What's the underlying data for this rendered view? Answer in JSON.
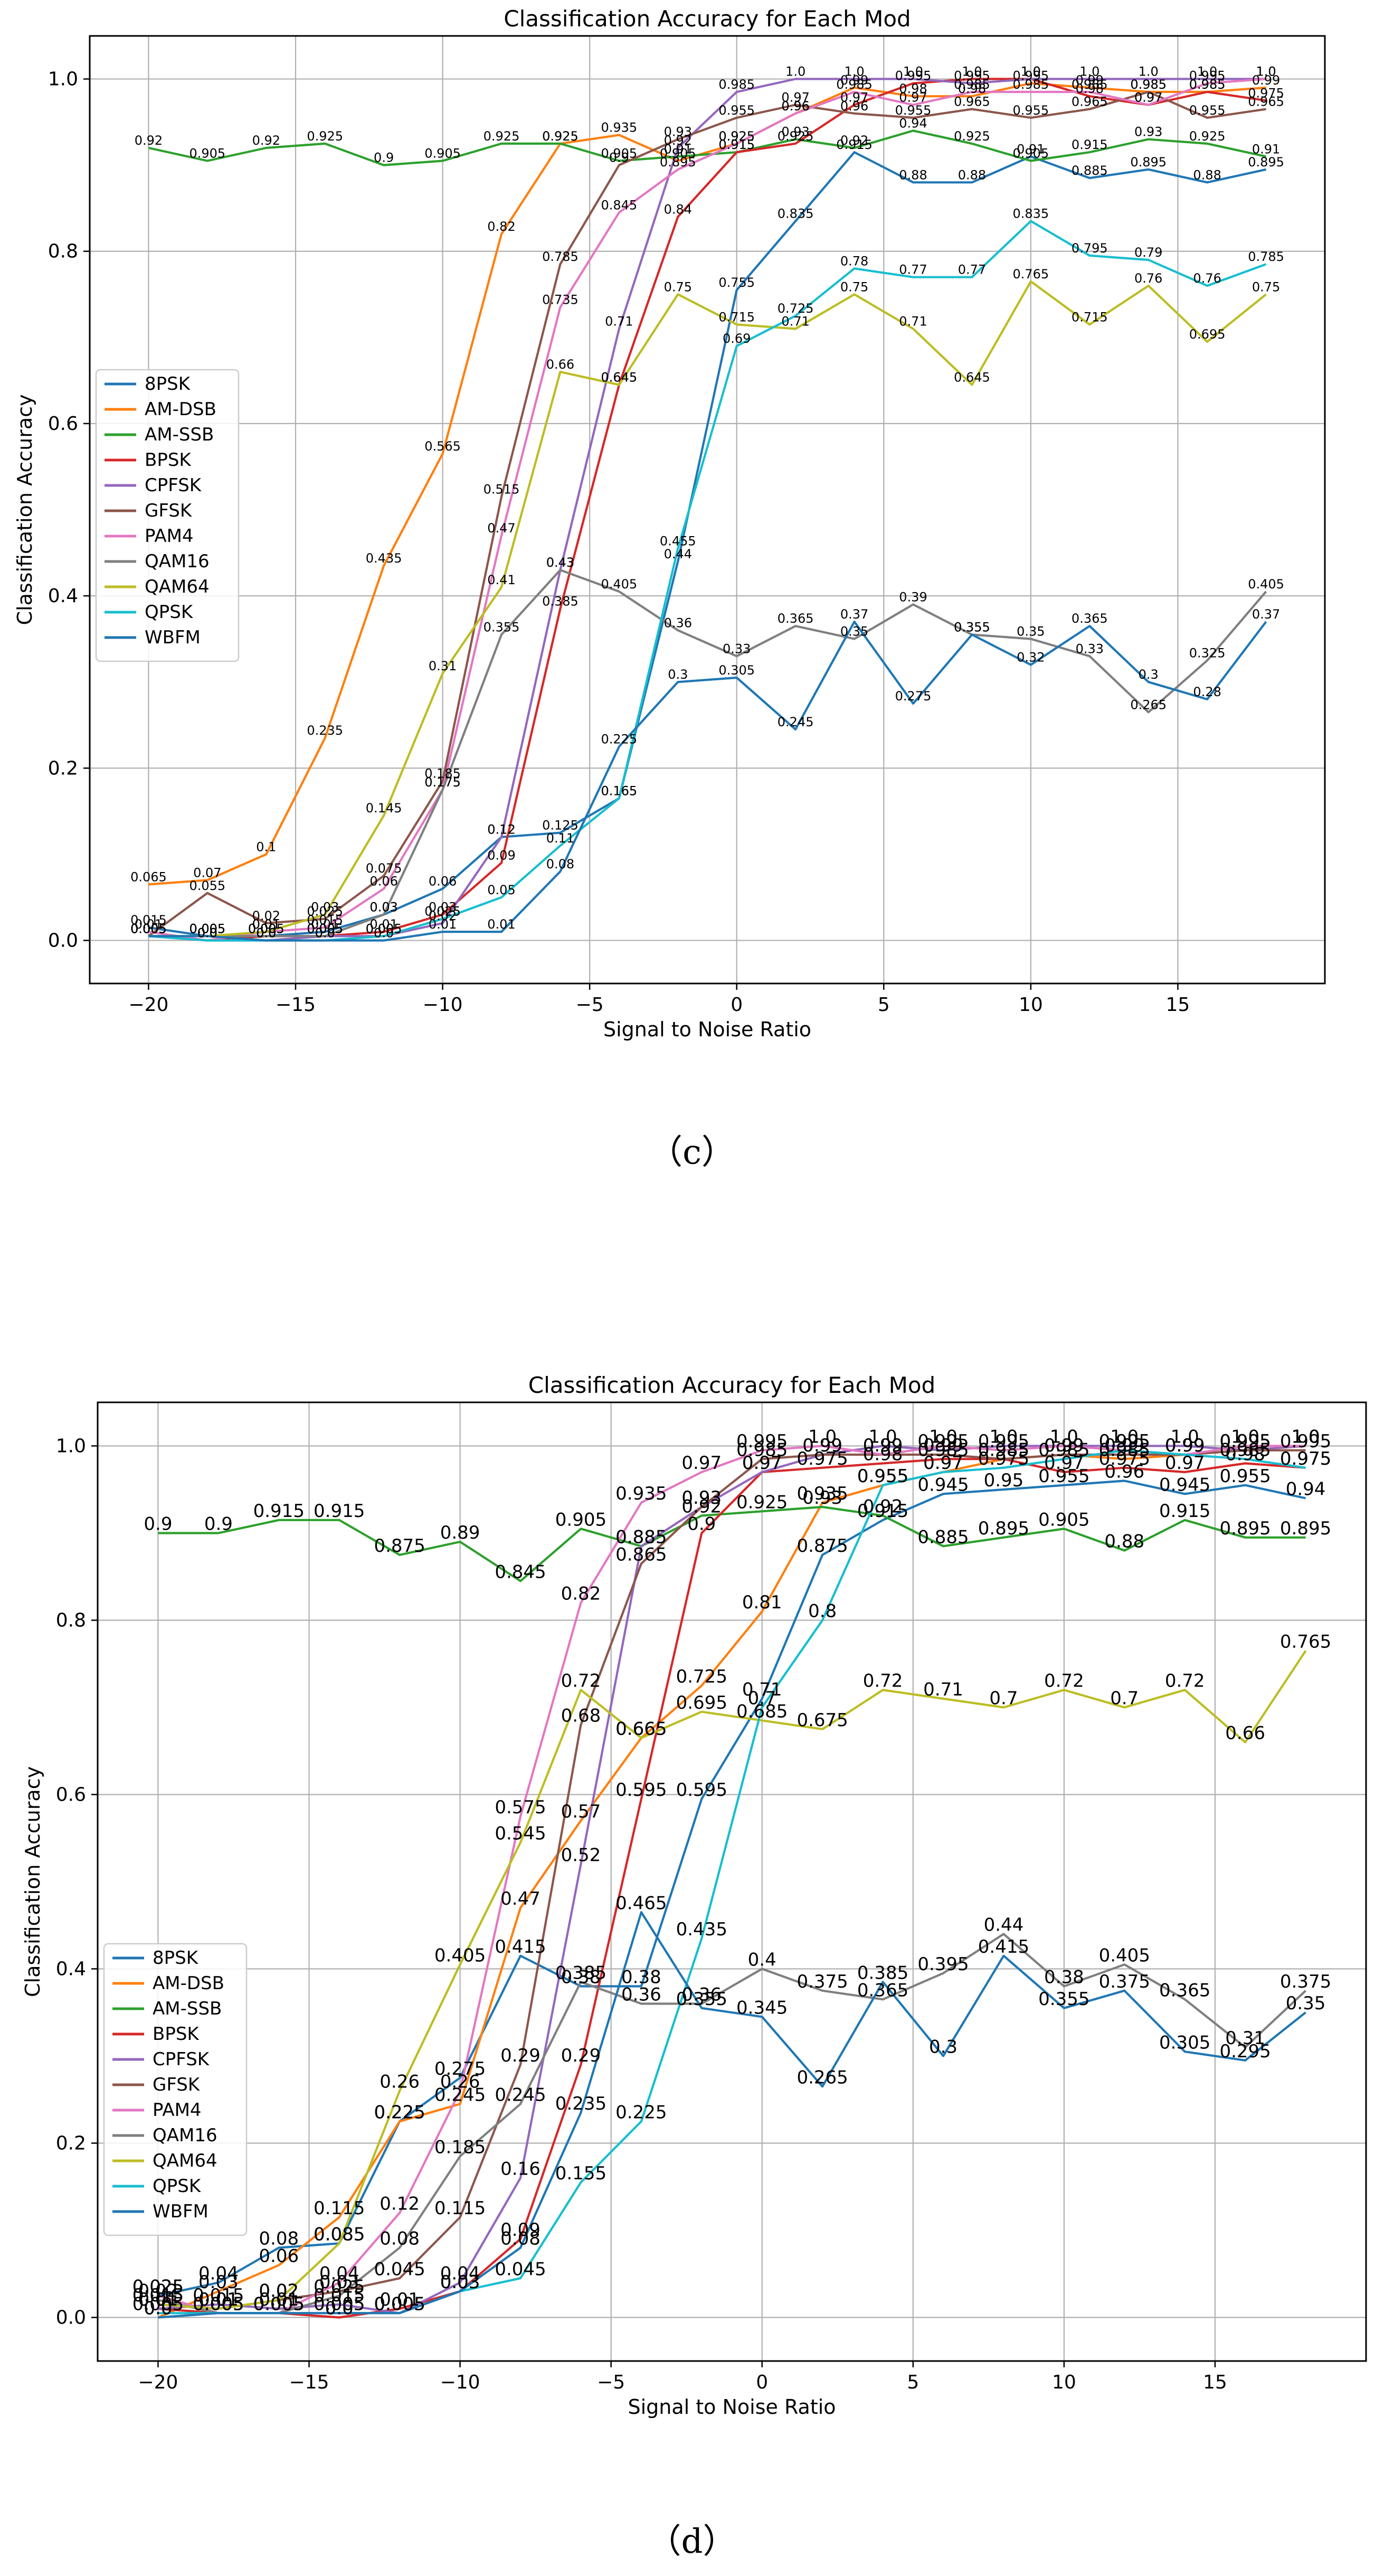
{
  "colors": {
    "8PSK": "#1f77b4",
    "AM-DSB": "#ff7f0e",
    "AM-SSB": "#2ca02c",
    "BPSK": "#d62728",
    "CPFSK": "#9467bd",
    "GFSK": "#8c564b",
    "PAM4": "#e377c2",
    "QAM16": "#7f7f7f",
    "QAM64": "#bcbd22",
    "QPSK": "#17becf",
    "WBFM": "#1f77b4"
  },
  "chart_data": [
    {
      "type": "line",
      "title": "Classification Accuracy for Each Mod",
      "xlabel": "Signal to Noise Ratio",
      "ylabel": "Classification Accuracy",
      "caption": "（c）",
      "x": [
        -20,
        -18,
        -16,
        -14,
        -12,
        -10,
        -8,
        -6,
        -4,
        -2,
        0,
        2,
        4,
        6,
        8,
        10,
        12,
        14,
        16,
        18
      ],
      "xlim": [
        -22,
        20
      ],
      "ylim": [
        -0.05,
        1.05
      ],
      "xticks": [
        -20,
        -15,
        -10,
        -5,
        0,
        5,
        10,
        15
      ],
      "yticks": [
        0.0,
        0.2,
        0.4,
        0.6,
        0.8,
        1.0
      ],
      "xtick_labels": [
        "−20",
        "−15",
        "−10",
        "−5",
        "0",
        "5",
        "10",
        "15"
      ],
      "ytick_labels": [
        "0.0",
        "0.2",
        "0.4",
        "0.6",
        "0.8",
        "1.0"
      ],
      "grid": true,
      "legend": "center-left",
      "series": [
        {
          "name": "8PSK",
          "values": [
            0.015,
            0.005,
            0.005,
            0.01,
            0.03,
            0.06,
            0.12,
            0.125,
            0.165,
            0.44,
            0.755,
            0.835,
            0.915,
            0.88,
            0.88,
            0.91,
            0.885,
            0.895,
            0.88,
            0.895
          ]
        },
        {
          "name": "AM-DSB",
          "values": [
            0.065,
            0.07,
            0.1,
            0.235,
            0.435,
            0.565,
            0.82,
            0.925,
            0.935,
            0.905,
            0.925,
            0.96,
            0.99,
            0.98,
            0.98,
            0.995,
            0.99,
            0.985,
            0.985,
            0.99
          ]
        },
        {
          "name": "AM-SSB",
          "values": [
            0.92,
            0.905,
            0.92,
            0.925,
            0.9,
            0.905,
            0.925,
            0.925,
            0.905,
            0.91,
            0.915,
            0.93,
            0.92,
            0.94,
            0.925,
            0.905,
            0.915,
            0.93,
            0.925,
            0.91
          ]
        },
        {
          "name": "BPSK",
          "values": [
            0.005,
            0.0,
            0.005,
            0.005,
            0.01,
            0.03,
            0.09,
            0.385,
            0.645,
            0.84,
            0.915,
            0.925,
            0.97,
            0.995,
            1.0,
            1.0,
            0.98,
            0.97,
            0.985,
            0.975
          ]
        },
        {
          "name": "CPFSK",
          "values": [
            0.005,
            0.0,
            0.0,
            0.005,
            0.005,
            0.02,
            0.12,
            0.43,
            0.71,
            0.92,
            0.985,
            1.0,
            1.0,
            1.0,
            0.995,
            1.0,
            1.0,
            1.0,
            1.0,
            1.0
          ]
        },
        {
          "name": "GFSK",
          "values": [
            0.005,
            0.055,
            0.02,
            0.025,
            0.075,
            0.185,
            0.515,
            0.785,
            0.9,
            0.93,
            0.955,
            0.97,
            0.96,
            0.955,
            0.965,
            0.955,
            0.965,
            0.985,
            0.955,
            0.965
          ]
        },
        {
          "name": "PAM4",
          "values": [
            0.01,
            0.0,
            0.01,
            0.015,
            0.06,
            0.175,
            0.47,
            0.735,
            0.845,
            0.895,
            0.925,
            0.96,
            0.985,
            0.97,
            0.985,
            0.985,
            0.985,
            0.97,
            0.995,
            1.0
          ]
        },
        {
          "name": "QAM16",
          "values": [
            0.005,
            0.005,
            0.005,
            0.005,
            0.03,
            0.175,
            0.355,
            0.43,
            0.405,
            0.36,
            0.33,
            0.365,
            0.35,
            0.39,
            0.355,
            0.35,
            0.33,
            0.265,
            0.325,
            0.405
          ]
        },
        {
          "name": "QAM64",
          "values": [
            0.005,
            0.005,
            0.01,
            0.03,
            0.145,
            0.31,
            0.41,
            0.66,
            0.645,
            0.75,
            0.715,
            0.71,
            0.75,
            0.71,
            0.645,
            0.765,
            0.715,
            0.76,
            0.695,
            0.75
          ]
        },
        {
          "name": "QPSK",
          "values": [
            0.005,
            0.0,
            0.0,
            0.0,
            0.005,
            0.025,
            0.05,
            0.11,
            0.165,
            0.455,
            0.69,
            0.725,
            0.78,
            0.77,
            0.77,
            0.835,
            0.795,
            0.79,
            0.76,
            0.785
          ]
        },
        {
          "name": "WBFM",
          "values": [
            0.005,
            0.005,
            0.0,
            0.0,
            0.0,
            0.01,
            0.01,
            0.08,
            0.225,
            0.3,
            0.305,
            0.245,
            0.37,
            0.275,
            0.355,
            0.32,
            0.365,
            0.3,
            0.28,
            0.37
          ]
        }
      ]
    },
    {
      "type": "line",
      "title": "Classification Accuracy for Each Mod",
      "xlabel": "Signal to Noise Ratio",
      "ylabel": "Classification Accuracy",
      "caption": "（d）",
      "x": [
        -20,
        -18,
        -16,
        -14,
        -12,
        -10,
        -8,
        -6,
        -4,
        -2,
        0,
        2,
        4,
        6,
        8,
        10,
        12,
        14,
        16,
        18
      ],
      "xlim": [
        -22,
        20
      ],
      "ylim": [
        -0.05,
        1.05
      ],
      "xticks": [
        -20,
        -15,
        -10,
        -5,
        0,
        5,
        10,
        15
      ],
      "yticks": [
        0.0,
        0.2,
        0.4,
        0.6,
        0.8,
        1.0
      ],
      "xtick_labels": [
        "−20",
        "−15",
        "−10",
        "−5",
        "0",
        "5",
        "10",
        "15"
      ],
      "ytick_labels": [
        "0.0",
        "0.2",
        "0.4",
        "0.6",
        "0.8",
        "1.0"
      ],
      "grid": true,
      "legend": "center-left",
      "series": [
        {
          "name": "8PSK",
          "values": [
            0.025,
            0.04,
            0.08,
            0.085,
            0.225,
            0.275,
            0.415,
            0.38,
            0.38,
            0.595,
            0.71,
            0.875,
            0.915,
            0.945,
            0.95,
            0.955,
            0.96,
            0.945,
            0.955,
            0.94
          ]
        },
        {
          "name": "AM-DSB",
          "values": [
            0.0,
            0.03,
            0.06,
            0.115,
            0.225,
            0.245,
            0.47,
            0.57,
            0.665,
            0.725,
            0.81,
            0.935,
            0.955,
            0.97,
            0.985,
            0.99,
            0.985,
            0.99,
            0.995,
            1.0
          ]
        },
        {
          "name": "AM-SSB",
          "values": [
            0.9,
            0.9,
            0.915,
            0.915,
            0.875,
            0.89,
            0.845,
            0.905,
            0.885,
            0.92,
            0.925,
            0.93,
            0.92,
            0.885,
            0.895,
            0.905,
            0.88,
            0.915,
            0.895,
            0.895
          ]
        },
        {
          "name": "BPSK",
          "values": [
            0.01,
            0.005,
            0.005,
            0.0,
            0.01,
            0.03,
            0.09,
            0.29,
            0.595,
            0.9,
            0.97,
            0.975,
            0.98,
            0.985,
            0.985,
            0.97,
            0.975,
            0.97,
            0.98,
            0.975
          ]
        },
        {
          "name": "CPFSK",
          "values": [
            0.01,
            0.015,
            0.01,
            0.015,
            0.005,
            0.04,
            0.16,
            0.52,
            0.885,
            0.93,
            0.97,
            0.99,
            1.0,
            0.995,
            1.0,
            1.0,
            1.0,
            1.0,
            0.995,
            1.0
          ]
        },
        {
          "name": "GFSK",
          "values": [
            0.015,
            0.01,
            0.02,
            0.03,
            0.045,
            0.115,
            0.29,
            0.68,
            0.865,
            0.93,
            0.985,
            0.99,
            0.99,
            0.99,
            0.985,
            0.99,
            0.99,
            0.99,
            0.995,
            0.995
          ]
        },
        {
          "name": "PAM4",
          "values": [
            0.025,
            0.005,
            0.005,
            0.04,
            0.12,
            0.26,
            0.575,
            0.82,
            0.935,
            0.97,
            0.995,
            1.0,
            0.99,
            1.0,
            0.995,
            1.0,
            0.995,
            0.99,
            1.0,
            1.0
          ]
        },
        {
          "name": "QAM16",
          "values": [
            0.02,
            0.005,
            0.005,
            0.025,
            0.08,
            0.185,
            0.245,
            0.385,
            0.36,
            0.36,
            0.4,
            0.375,
            0.365,
            0.395,
            0.44,
            0.38,
            0.405,
            0.365,
            0.31,
            0.375
          ]
        },
        {
          "name": "QAM64",
          "values": [
            0.015,
            0.01,
            0.02,
            0.085,
            0.26,
            0.405,
            0.545,
            0.72,
            0.665,
            0.695,
            0.685,
            0.675,
            0.72,
            0.71,
            0.7,
            0.72,
            0.7,
            0.72,
            0.66,
            0.765
          ]
        },
        {
          "name": "QPSK",
          "values": [
            0.005,
            0.005,
            0.005,
            0.005,
            0.005,
            0.03,
            0.045,
            0.155,
            0.225,
            0.435,
            0.7,
            0.8,
            0.955,
            0.97,
            0.975,
            0.985,
            0.995,
            0.99,
            0.985,
            0.975
          ]
        },
        {
          "name": "WBFM",
          "values": [
            0.0,
            0.005,
            0.005,
            0.005,
            0.005,
            0.03,
            0.08,
            0.235,
            0.465,
            0.355,
            0.345,
            0.265,
            0.385,
            0.3,
            0.415,
            0.355,
            0.375,
            0.305,
            0.295,
            0.35
          ]
        }
      ]
    }
  ]
}
